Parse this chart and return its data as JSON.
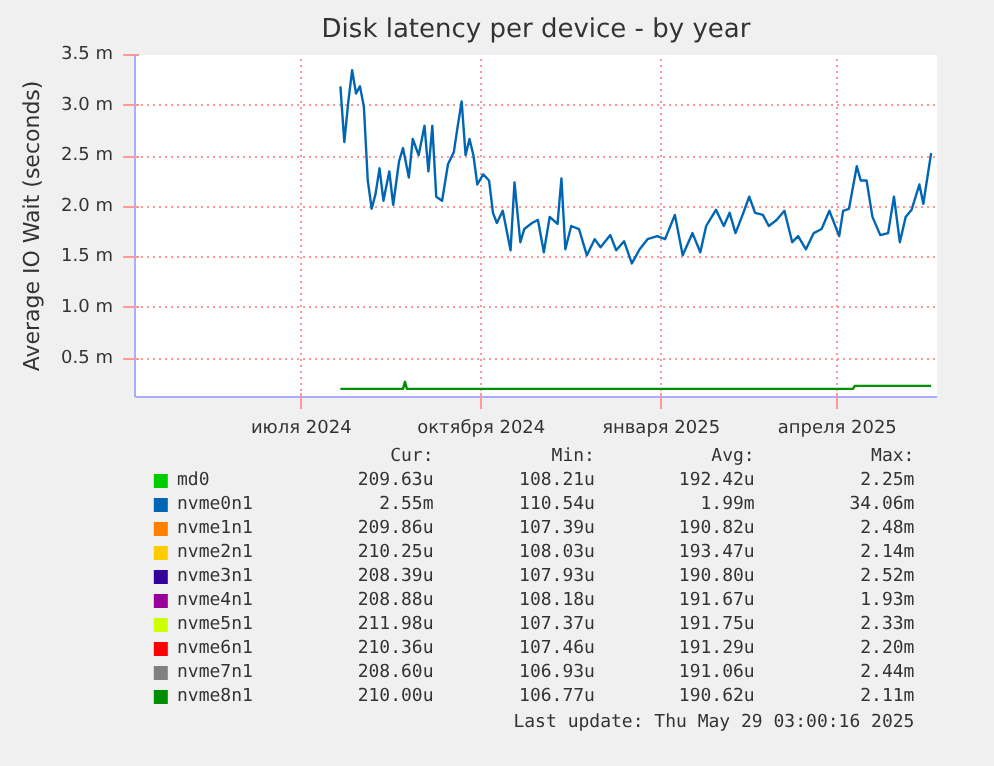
{
  "chart_data": {
    "type": "line",
    "title": "Disk latency per device - by year",
    "ylabel": "Average IO Wait (seconds)",
    "xlim": [
      "2024-04-07",
      "2025-05-22"
    ],
    "xticks": [
      {
        "value": "2024-07-01",
        "label": "июля 2024"
      },
      {
        "value": "2024-10-01",
        "label": "октября 2024"
      },
      {
        "value": "2025-01-01",
        "label": "января 2025"
      },
      {
        "value": "2025-04-01",
        "label": "апреля 2025"
      }
    ],
    "ylim": [
      0.12,
      3.5
    ],
    "yticks": [
      {
        "value": 0.5,
        "label": "0.5 m"
      },
      {
        "value": 1.0,
        "label": "1.0 m"
      },
      {
        "value": 1.5,
        "label": "1.5 m"
      },
      {
        "value": 2.0,
        "label": "2.0 m"
      },
      {
        "value": 2.5,
        "label": "2.5 m"
      },
      {
        "value": 3.0,
        "label": "3.0 m"
      },
      {
        "value": 3.5,
        "label": "3.5 m"
      }
    ],
    "grid": true,
    "legend": "bottom",
    "series": [
      {
        "name": "md0",
        "color": "#00cc00"
      },
      {
        "name": "nvme0n1",
        "color": "#0066b3",
        "x": [
          "2024-07-21",
          "2024-07-23",
          "2024-07-25",
          "2024-07-27",
          "2024-07-29",
          "2024-07-31",
          "2024-08-02",
          "2024-08-04",
          "2024-08-06",
          "2024-08-08",
          "2024-08-10",
          "2024-08-12",
          "2024-08-15",
          "2024-08-17",
          "2024-08-20",
          "2024-08-22",
          "2024-08-25",
          "2024-08-27",
          "2024-08-30",
          "2024-09-02",
          "2024-09-04",
          "2024-09-06",
          "2024-09-08",
          "2024-09-11",
          "2024-09-14",
          "2024-09-17",
          "2024-09-19",
          "2024-09-21",
          "2024-09-23",
          "2024-09-25",
          "2024-09-27",
          "2024-09-29",
          "2024-10-02",
          "2024-10-05",
          "2024-10-07",
          "2024-10-09",
          "2024-10-12",
          "2024-10-16",
          "2024-10-18",
          "2024-10-21",
          "2024-10-23",
          "2024-10-27",
          "2024-10-30",
          "2024-11-02",
          "2024-11-05",
          "2024-11-09",
          "2024-11-11",
          "2024-11-13",
          "2024-11-16",
          "2024-11-20",
          "2024-11-24",
          "2024-11-28",
          "2024-12-01",
          "2024-12-06",
          "2024-12-09",
          "2024-12-13",
          "2024-12-17",
          "2024-12-21",
          "2024-12-25",
          "2024-12-30",
          "2025-01-03",
          "2025-01-08",
          "2025-01-12",
          "2025-01-17",
          "2025-01-21",
          "2025-01-24",
          "2025-01-29",
          "2025-02-02",
          "2025-02-05",
          "2025-02-08",
          "2025-02-12",
          "2025-02-15",
          "2025-02-18",
          "2025-02-22",
          "2025-02-25",
          "2025-03-01",
          "2025-03-05",
          "2025-03-09",
          "2025-03-12",
          "2025-03-16",
          "2025-03-20",
          "2025-03-24",
          "2025-03-28",
          "2025-04-02",
          "2025-04-04",
          "2025-04-07",
          "2025-04-11",
          "2025-04-13",
          "2025-04-16",
          "2025-04-19",
          "2025-04-23",
          "2025-04-27",
          "2025-04-30",
          "2025-05-03",
          "2025-05-06",
          "2025-05-09",
          "2025-05-13",
          "2025-05-15",
          "2025-05-19"
        ],
        "values": [
          3.19,
          2.64,
          3.03,
          3.35,
          3.12,
          3.19,
          2.99,
          2.26,
          1.98,
          2.13,
          2.38,
          2.06,
          2.35,
          2.02,
          2.45,
          2.58,
          2.29,
          2.67,
          2.51,
          2.8,
          2.35,
          2.8,
          2.1,
          2.06,
          2.42,
          2.54,
          2.8,
          3.04,
          2.51,
          2.67,
          2.51,
          2.22,
          2.32,
          2.26,
          1.94,
          1.84,
          1.96,
          1.57,
          2.24,
          1.65,
          1.78,
          1.84,
          1.87,
          1.55,
          1.9,
          1.83,
          2.28,
          1.58,
          1.81,
          1.78,
          1.52,
          1.68,
          1.6,
          1.72,
          1.57,
          1.66,
          1.44,
          1.58,
          1.68,
          1.71,
          1.68,
          1.92,
          1.52,
          1.74,
          1.55,
          1.81,
          1.97,
          1.81,
          1.94,
          1.74,
          1.94,
          2.1,
          1.94,
          1.92,
          1.81,
          1.87,
          1.96,
          1.65,
          1.71,
          1.58,
          1.74,
          1.78,
          1.96,
          1.71,
          1.96,
          1.98,
          2.4,
          2.26,
          2.26,
          1.9,
          1.72,
          1.74,
          2.1,
          1.65,
          1.9,
          1.97,
          2.22,
          2.03,
          2.53
        ]
      },
      {
        "name": "nvme1n1",
        "color": "#ff8000"
      },
      {
        "name": "nvme2n1",
        "color": "#ffcc00"
      },
      {
        "name": "nvme3n1",
        "color": "#330099"
      },
      {
        "name": "nvme4n1",
        "color": "#990099"
      },
      {
        "name": "nvme5n1",
        "color": "#ccff00"
      },
      {
        "name": "nvme6n1",
        "color": "#ff0000"
      },
      {
        "name": "nvme7n1",
        "color": "#808080"
      },
      {
        "name": "nvme8n1",
        "color": "#008f00",
        "x": [
          "2024-07-21",
          "2024-08-22",
          "2024-08-23",
          "2024-08-24",
          "2025-04-09",
          "2025-04-10",
          "2025-05-19"
        ],
        "values": [
          0.2,
          0.2,
          0.27,
          0.2,
          0.2,
          0.23,
          0.23
        ]
      }
    ],
    "annotations": [
      "Cur:",
      "Min:",
      "Avg:",
      "Max:",
      "209.63u",
      "108.21u",
      "192.42u",
      "2.25m",
      "2.55m",
      "110.54u",
      "1.99m",
      "34.06m",
      "209.86u",
      "107.39u",
      "190.82u",
      "2.48m",
      "210.25u",
      "108.03u",
      "193.47u",
      "2.14m",
      "208.39u",
      "107.93u",
      "190.80u",
      "2.52m",
      "208.88u",
      "108.18u",
      "191.67u",
      "1.93m",
      "211.98u",
      "107.37u",
      "191.75u",
      "2.33m",
      "210.36u",
      "107.46u",
      "191.29u",
      "2.20m",
      "208.60u",
      "106.93u",
      "191.06u",
      "2.44m",
      "210.00u",
      "106.77u",
      "190.62u",
      "2.11m",
      "Last update: Thu May 29 03:00:16 2025"
    ]
  }
}
